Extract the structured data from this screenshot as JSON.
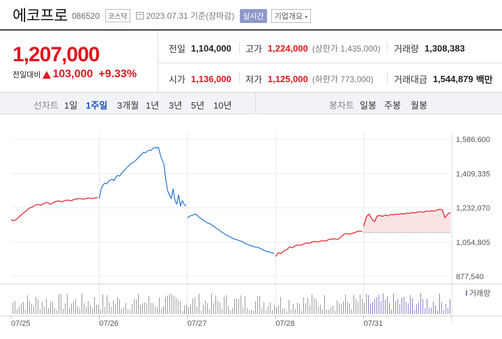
{
  "header": {
    "name": "에코프로",
    "code": "086520",
    "market": "코스닥",
    "date": "2023.07.31 기준(장마감)",
    "realtime_label": "실시간",
    "company_info_label": "기업개요"
  },
  "price": {
    "current": "1,207,000",
    "change_label": "전일대비",
    "change_amount": "103,000",
    "change_pct": "+9.33%"
  },
  "stats": {
    "prev_close_label": "전일",
    "prev_close": "1,104,000",
    "high_label": "고가",
    "high": "1,224,000",
    "upper_limit": "(상한가 1,435,000)",
    "volume_label": "거래량",
    "volume": "1,308,383",
    "open_label": "시가",
    "open": "1,136,000",
    "low_label": "저가",
    "low": "1,125,000",
    "lower_limit": "(하한가 773,000)",
    "value_label": "거래대금",
    "value": "1,544,879",
    "value_unit": "백만"
  },
  "tabs": {
    "line_label": "선차트",
    "periods": [
      "1일",
      "1주일",
      "3개월",
      "1년",
      "3년",
      "5년",
      "10년"
    ],
    "active_period": "1주일",
    "candle_label": "봉차트",
    "candle_periods": [
      "일봉",
      "주봉",
      "월봉"
    ]
  },
  "colors": {
    "up": "#e0161e",
    "down": "#1e6fd0",
    "volume": "#999999",
    "volume_last": "#8a7fc4"
  },
  "chart_data": {
    "type": "line",
    "title": "",
    "xlabel": "",
    "ylabel": "",
    "ylim": [
      877540,
      1586600
    ],
    "y_ticks": [
      "1,586,600",
      "1,409,335",
      "1,232,070",
      "1,054,805",
      "877,540"
    ],
    "x_ticks": [
      "07/25",
      "07/26",
      "07/27",
      "07/28",
      "07/31"
    ],
    "volume_legend": "거래량",
    "prev_close": 1104000,
    "series": [
      {
        "day": "07/25",
        "values": [
          1170000,
          1165000,
          1175000,
          1190000,
          1205000,
          1215000,
          1230000,
          1235000,
          1245000,
          1250000,
          1245000,
          1255000,
          1260000,
          1250000,
          1258000,
          1265000,
          1268000,
          1262000,
          1270000,
          1272000,
          1268000,
          1275000,
          1278000,
          1280000,
          1276000,
          1280000,
          1282000,
          1279000,
          1283000,
          1285000
        ]
      },
      {
        "day": "07/26",
        "values": [
          1280000,
          1330000,
          1350000,
          1360000,
          1355000,
          1370000,
          1375000,
          1380000,
          1372000,
          1390000,
          1400000,
          1395000,
          1410000,
          1420000,
          1430000,
          1440000,
          1450000,
          1460000,
          1465000,
          1470000,
          1480000,
          1490000,
          1500000,
          1510000,
          1520000,
          1515000,
          1525000,
          1530000,
          1528000,
          1538000,
          1545000,
          1540000,
          1545000,
          1510000,
          1480000,
          1460000,
          1380000,
          1320000,
          1300000,
          1280000,
          1330000,
          1270000,
          1250000,
          1300000,
          1240000,
          1270000,
          1250000,
          1240000
        ]
      },
      {
        "day": "07/27",
        "values": [
          1180000,
          1190000,
          1195000,
          1200000,
          1185000,
          1175000,
          1165000,
          1155000,
          1150000,
          1140000,
          1130000,
          1120000,
          1110000,
          1100000,
          1090000,
          1085000,
          1075000,
          1070000,
          1065000,
          1060000,
          1055000,
          1045000,
          1040000,
          1035000,
          1030000,
          1028000,
          1022000,
          1015000,
          1008000,
          1004000,
          1000000,
          995000
        ]
      },
      {
        "day": "07/28",
        "values": [
          980000,
          1000000,
          995000,
          1010000,
          1015000,
          1030000,
          1025000,
          1035000,
          1040000,
          1038000,
          1045000,
          1050000,
          1048000,
          1055000,
          1058000,
          1055000,
          1060000,
          1062000,
          1060000,
          1068000,
          1070000,
          1072000,
          1068000,
          1075000,
          1090000,
          1100000,
          1095000,
          1098000,
          1102000,
          1108000,
          1112000,
          1110000
        ]
      },
      {
        "day": "07/31",
        "values": [
          1136000,
          1185000,
          1200000,
          1175000,
          1160000,
          1190000,
          1192000,
          1188000,
          1195000,
          1190000,
          1198000,
          1195000,
          1200000,
          1198000,
          1202000,
          1200000,
          1205000,
          1203000,
          1208000,
          1206000,
          1210000,
          1212000,
          1209000,
          1215000,
          1213000,
          1218000,
          1214000,
          1220000,
          1224000,
          1222000,
          1180000,
          1200000,
          1207000
        ]
      }
    ]
  }
}
